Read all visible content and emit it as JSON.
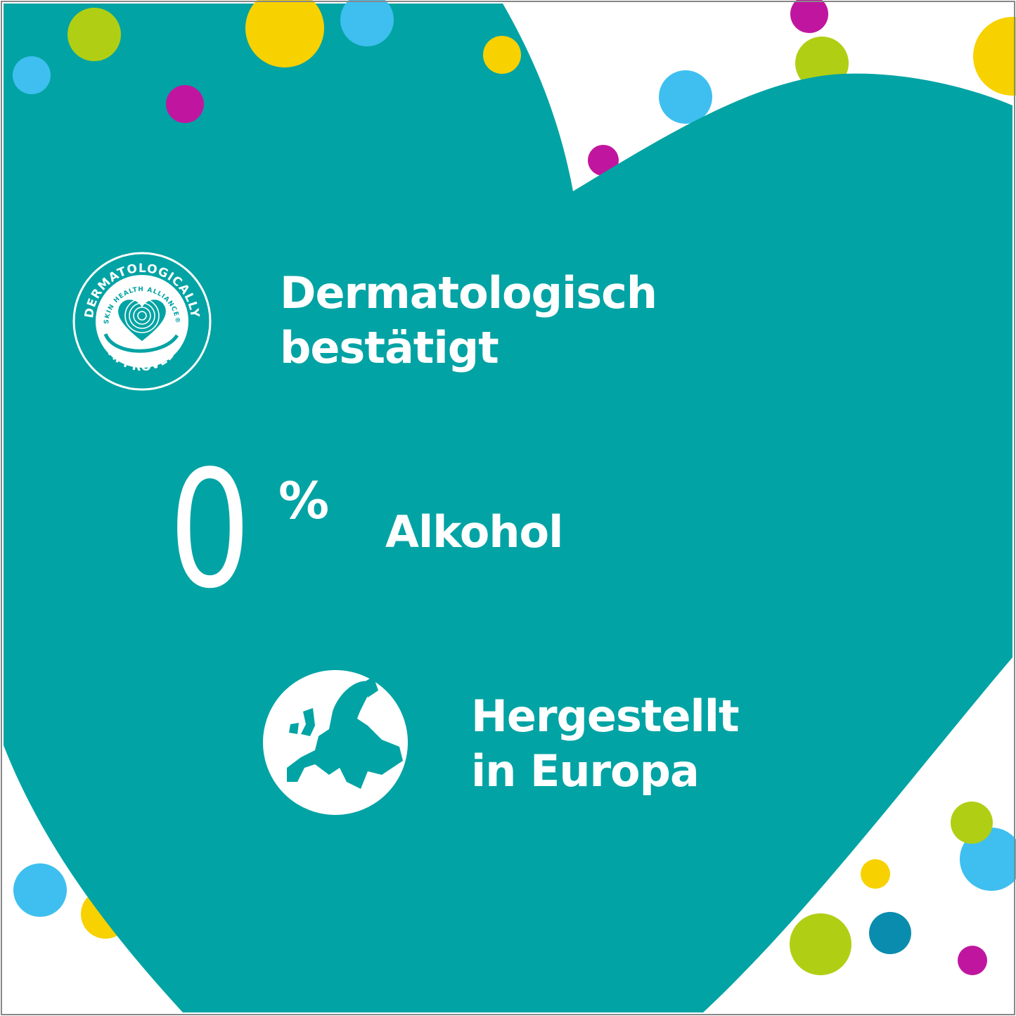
{
  "colors": {
    "teal": "#02a3a4",
    "white": "#ffffff",
    "dots": {
      "green": "#b0cf14",
      "yellow": "#f7d100",
      "blue": "#3ebff0",
      "magenta": "#c0169f",
      "dark_blue": "#0a8cae"
    }
  },
  "badge": {
    "top_text": "DERMATOLOGICALLY",
    "inner_text": "SKIN HEALTH ALLIANCE®",
    "bottom_text": "APPROVED",
    "icon": "fingerprint-heart-hand-icon"
  },
  "claims": [
    {
      "line1": "Dermatologisch",
      "line2": "bestätigt"
    },
    {
      "number": "0",
      "unit": "%",
      "label": "Alkohol"
    },
    {
      "line1": "Hergestellt",
      "line2": "in Europa",
      "icon": "europe-globe-icon"
    }
  ]
}
